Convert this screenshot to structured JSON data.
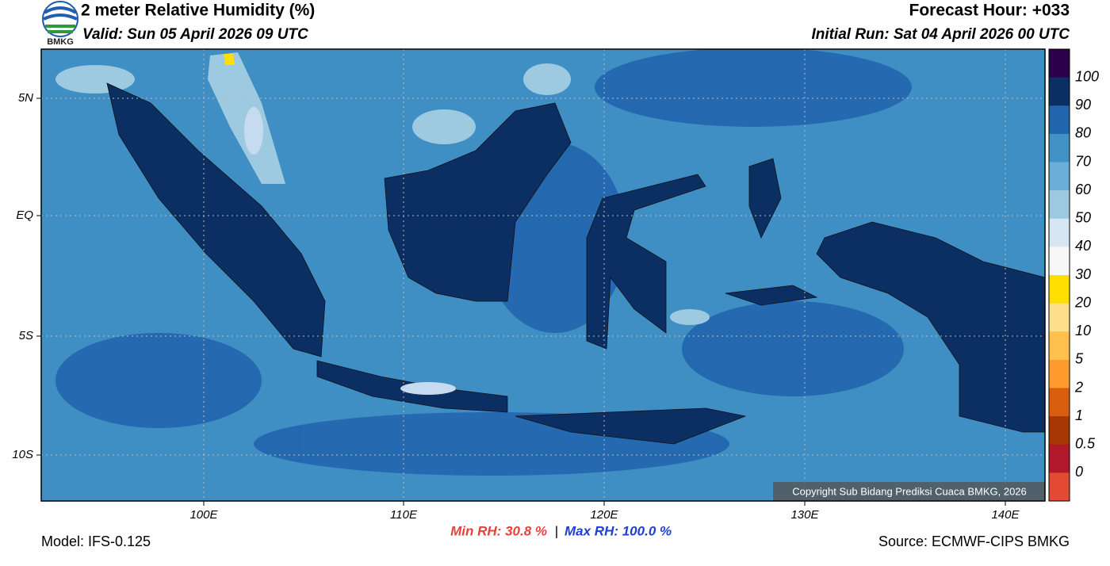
{
  "header": {
    "logo_text": "BMKG",
    "title": "2 meter Relative Humidity (%)",
    "valid": "Valid: Sun 05 April 2026 09 UTC",
    "forecast_hour": "Forecast Hour: +033",
    "initial_run": "Initial Run: Sat 04 April 2026 00 UTC"
  },
  "map": {
    "lat_labels": [
      "5N",
      "EQ",
      "5S",
      "10S"
    ],
    "lon_labels": [
      "100E",
      "110E",
      "120E",
      "130E",
      "140E"
    ],
    "copyright": "Copyright Sub Bidang Prediksi Cuaca BMKG, 2026"
  },
  "colorbar": {
    "labels": [
      "100",
      "90",
      "80",
      "70",
      "60",
      "50",
      "40",
      "30",
      "20",
      "10",
      "5",
      "2",
      "1",
      "0.5",
      "0"
    ]
  },
  "footer": {
    "model": "Model: IFS-0.125",
    "min_rh": "Min RH:  30.8 %",
    "separator": "|",
    "max_rh": "Max RH: 100.0 %",
    "source": "Source: ECMWF-CIPS BMKG"
  }
}
